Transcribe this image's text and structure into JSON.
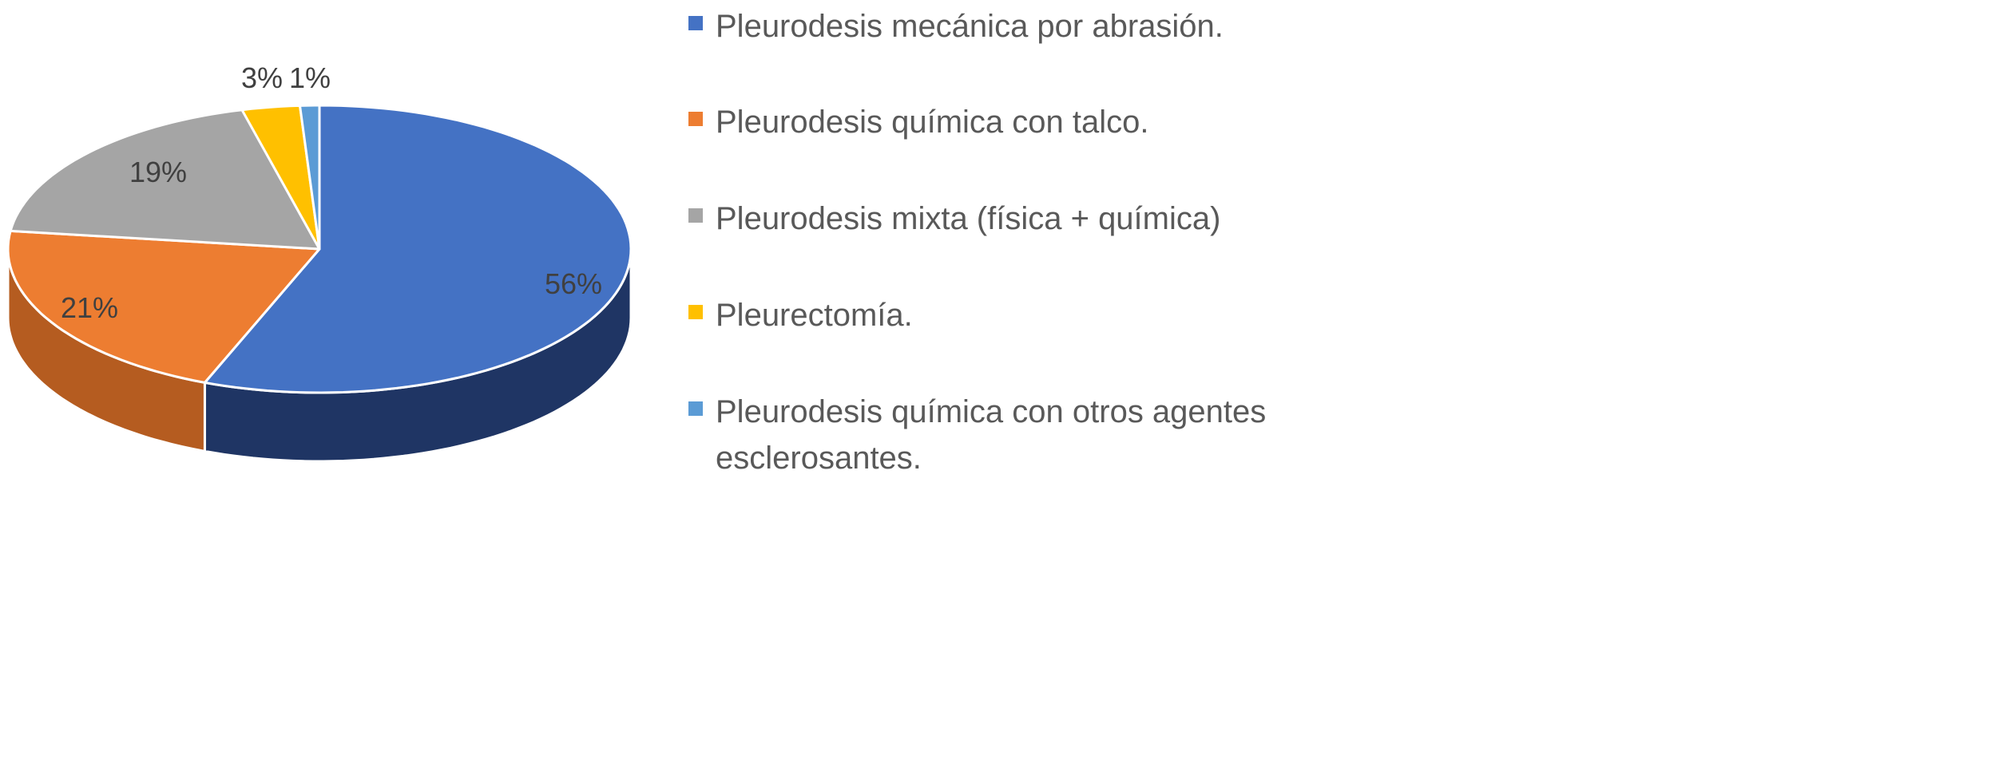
{
  "chart_data": {
    "type": "pie",
    "style": "3d",
    "start_angle": "top, clockwise",
    "slices": [
      {
        "label": "Pleurodesis mecánica por abrasión.",
        "value": 56,
        "data_label": "56%",
        "color": "#4472C4",
        "side_color": "#1F3564"
      },
      {
        "label": "Pleurodesis química con talco.",
        "value": 21,
        "data_label": "21%",
        "color": "#ED7D31",
        "side_color": "#B55C20"
      },
      {
        "label": "Pleurodesis mixta (física + química)",
        "value": 19,
        "data_label": "19%",
        "color": "#A5A5A5",
        "side_color": "#7A7A7A"
      },
      {
        "label": "Pleurectomía.",
        "value": 3,
        "data_label": "3%",
        "color": "#FFC000",
        "side_color": "#BF9000"
      },
      {
        "label": "Pleurodesis química con otros agentes esclerosantes.",
        "value": 1,
        "data_label": "1%",
        "color": "#5B9BD5",
        "side_color": "#3A6EA0"
      }
    ],
    "legend_position": "right"
  }
}
